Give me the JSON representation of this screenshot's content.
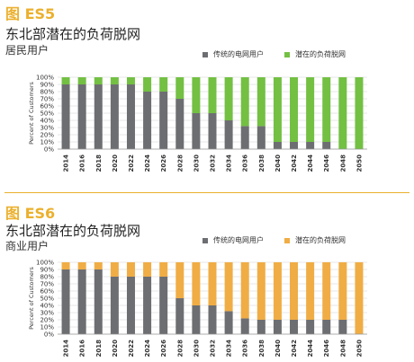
{
  "figures": [
    {
      "label": "图 ES5",
      "title": "东北部潜在的负荷脱网",
      "subtitle": "居民用户",
      "legend": [
        {
          "name": "传统的电网用户",
          "color": "#6d6e71"
        },
        {
          "name": "潜在的负荷脱网",
          "color": "#73c043"
        }
      ]
    },
    {
      "label": "图 ES6",
      "title": "东北部潜在的负荷脱网",
      "subtitle": "商业用户",
      "legend": [
        {
          "name": "传统的电网用户",
          "color": "#6d6e71"
        },
        {
          "name": "潜在的负荷脱网",
          "color": "#f0ad45"
        }
      ]
    }
  ],
  "colors": {
    "accent_label": "#ebb02d",
    "grid": "#d0d0d0",
    "divider": "#ebb02d"
  },
  "chart_data": [
    {
      "type": "bar",
      "stacked": true,
      "title": "东北部潜在的负荷脱网",
      "subtitle": "居民用户",
      "ylabel": "Percent of Customers",
      "ylim": [
        0,
        100
      ],
      "y_ticks": [
        "0%",
        "10%",
        "20%",
        "30%",
        "40%",
        "50%",
        "60%",
        "70%",
        "80%",
        "90%",
        "100%"
      ],
      "grid": true,
      "legend_position": "top-right",
      "categories": [
        "2014",
        "2016",
        "2018",
        "2020",
        "2022",
        "2024",
        "2026",
        "2028",
        "2030",
        "2032",
        "2034",
        "2036",
        "2038",
        "2040",
        "2042",
        "2044",
        "2046",
        "2048",
        "2050"
      ],
      "series": [
        {
          "name": "传统的电网用户",
          "color": "#6d6e71",
          "values": [
            90,
            90,
            90,
            90,
            90,
            80,
            80,
            70,
            50,
            50,
            40,
            32,
            32,
            10,
            10,
            10,
            10,
            0,
            0
          ]
        },
        {
          "name": "潜在的负荷脱网",
          "color": "#73c043",
          "values": [
            10,
            10,
            10,
            10,
            10,
            20,
            20,
            30,
            50,
            50,
            60,
            68,
            68,
            90,
            90,
            90,
            90,
            100,
            100
          ]
        }
      ]
    },
    {
      "type": "bar",
      "stacked": true,
      "title": "东北部潜在的负荷脱网",
      "subtitle": "商业用户",
      "ylabel": "Percent of Customers",
      "ylim": [
        0,
        100
      ],
      "y_ticks": [
        "0%",
        "10%",
        "20%",
        "30%",
        "40%",
        "50%",
        "60%",
        "70%",
        "80%",
        "90%",
        "100%"
      ],
      "grid": true,
      "legend_position": "top-right",
      "categories": [
        "2014",
        "2016",
        "2018",
        "2020",
        "2022",
        "2024",
        "2026",
        "2028",
        "2030",
        "2032",
        "2034",
        "2036",
        "2038",
        "2040",
        "2042",
        "2044",
        "2046",
        "2048",
        "2050"
      ],
      "series": [
        {
          "name": "传统的电网用户",
          "color": "#6d6e71",
          "values": [
            90,
            90,
            90,
            80,
            80,
            80,
            80,
            50,
            40,
            40,
            32,
            22,
            20,
            20,
            20,
            20,
            20,
            20,
            0
          ]
        },
        {
          "name": "潜在的负荷脱网",
          "color": "#f0ad45",
          "values": [
            10,
            10,
            10,
            20,
            20,
            20,
            20,
            50,
            60,
            60,
            68,
            78,
            80,
            80,
            80,
            80,
            80,
            80,
            100
          ]
        }
      ]
    }
  ]
}
